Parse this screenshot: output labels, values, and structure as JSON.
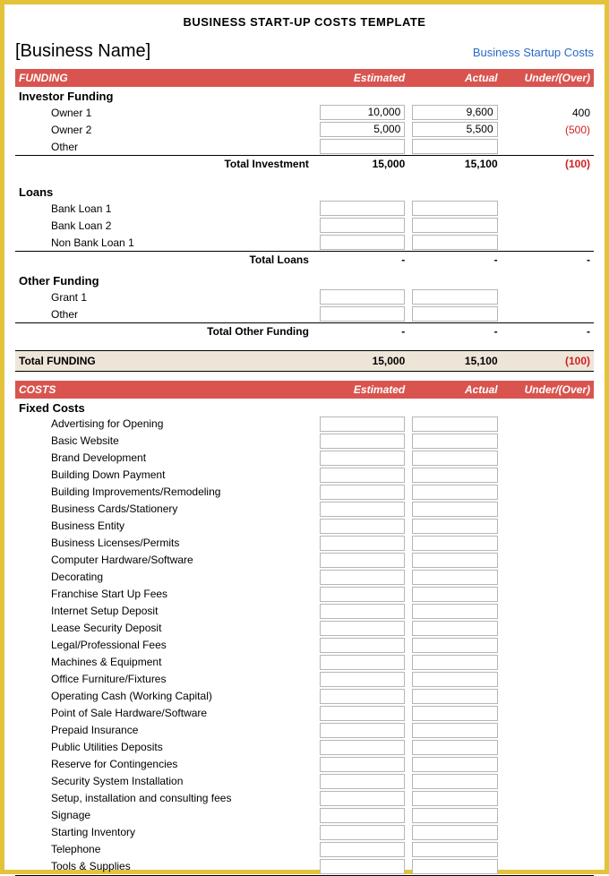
{
  "doc_title": "BUSINESS START-UP COSTS TEMPLATE",
  "business_name": "[Business Name]",
  "header_link": "Business Startup Costs",
  "colors": {
    "border": "#e3c33b",
    "section_bg": "#d9544f",
    "grand_total_bg": "#eee5d9",
    "link": "#2a6ac7",
    "negative": "#d32020",
    "cell_border": "#b6b6b6"
  },
  "cols": {
    "estimated": "Estimated",
    "actual": "Actual",
    "diff": "Under/(Over)"
  },
  "funding": {
    "title": "FUNDING",
    "investor": {
      "title": "Investor Funding",
      "rows": [
        {
          "label": "Owner 1",
          "est": "10,000",
          "act": "9,600",
          "diff": "400",
          "neg": false
        },
        {
          "label": "Owner 2",
          "est": "5,000",
          "act": "5,500",
          "diff": "(500)",
          "neg": true
        },
        {
          "label": "Other",
          "est": "",
          "act": "",
          "diff": "",
          "neg": false
        }
      ],
      "total_label": "Total Investment",
      "total": {
        "est": "15,000",
        "act": "15,100",
        "diff": "(100)",
        "neg": true
      }
    },
    "loans": {
      "title": "Loans",
      "rows": [
        {
          "label": "Bank Loan 1"
        },
        {
          "label": "Bank Loan 2"
        },
        {
          "label": "Non Bank Loan 1"
        }
      ],
      "total_label": "Total Loans",
      "total": {
        "est": "-",
        "act": "-",
        "diff": "-"
      }
    },
    "other": {
      "title": "Other Funding",
      "rows": [
        {
          "label": "Grant 1"
        },
        {
          "label": "Other"
        }
      ],
      "total_label": "Total Other Funding",
      "total": {
        "est": "-",
        "act": "-",
        "diff": "-"
      }
    },
    "grand_label": "Total FUNDING",
    "grand": {
      "est": "15,000",
      "act": "15,100",
      "diff": "(100)",
      "neg": true
    }
  },
  "costs": {
    "title": "COSTS",
    "fixed": {
      "title": "Fixed Costs",
      "rows": [
        "Advertising for Opening",
        "Basic Website",
        "Brand Development",
        "Building Down Payment",
        "Building Improvements/Remodeling",
        "Business Cards/Stationery",
        "Business Entity",
        "Business Licenses/Permits",
        "Computer Hardware/Software",
        "Decorating",
        "Franchise Start Up Fees",
        "Internet Setup Deposit",
        "Lease Security Deposit",
        "Legal/Professional Fees",
        "Machines & Equipment",
        "Office Furniture/Fixtures",
        "Operating Cash (Working Capital)",
        "Point of Sale Hardware/Software",
        "Prepaid Insurance",
        "Public Utilities Deposits",
        "Reserve for Contingencies",
        "Security System Installation",
        "Setup, installation and consulting fees",
        "Signage",
        "Starting Inventory",
        "Telephone",
        "Tools & Supplies"
      ]
    }
  }
}
